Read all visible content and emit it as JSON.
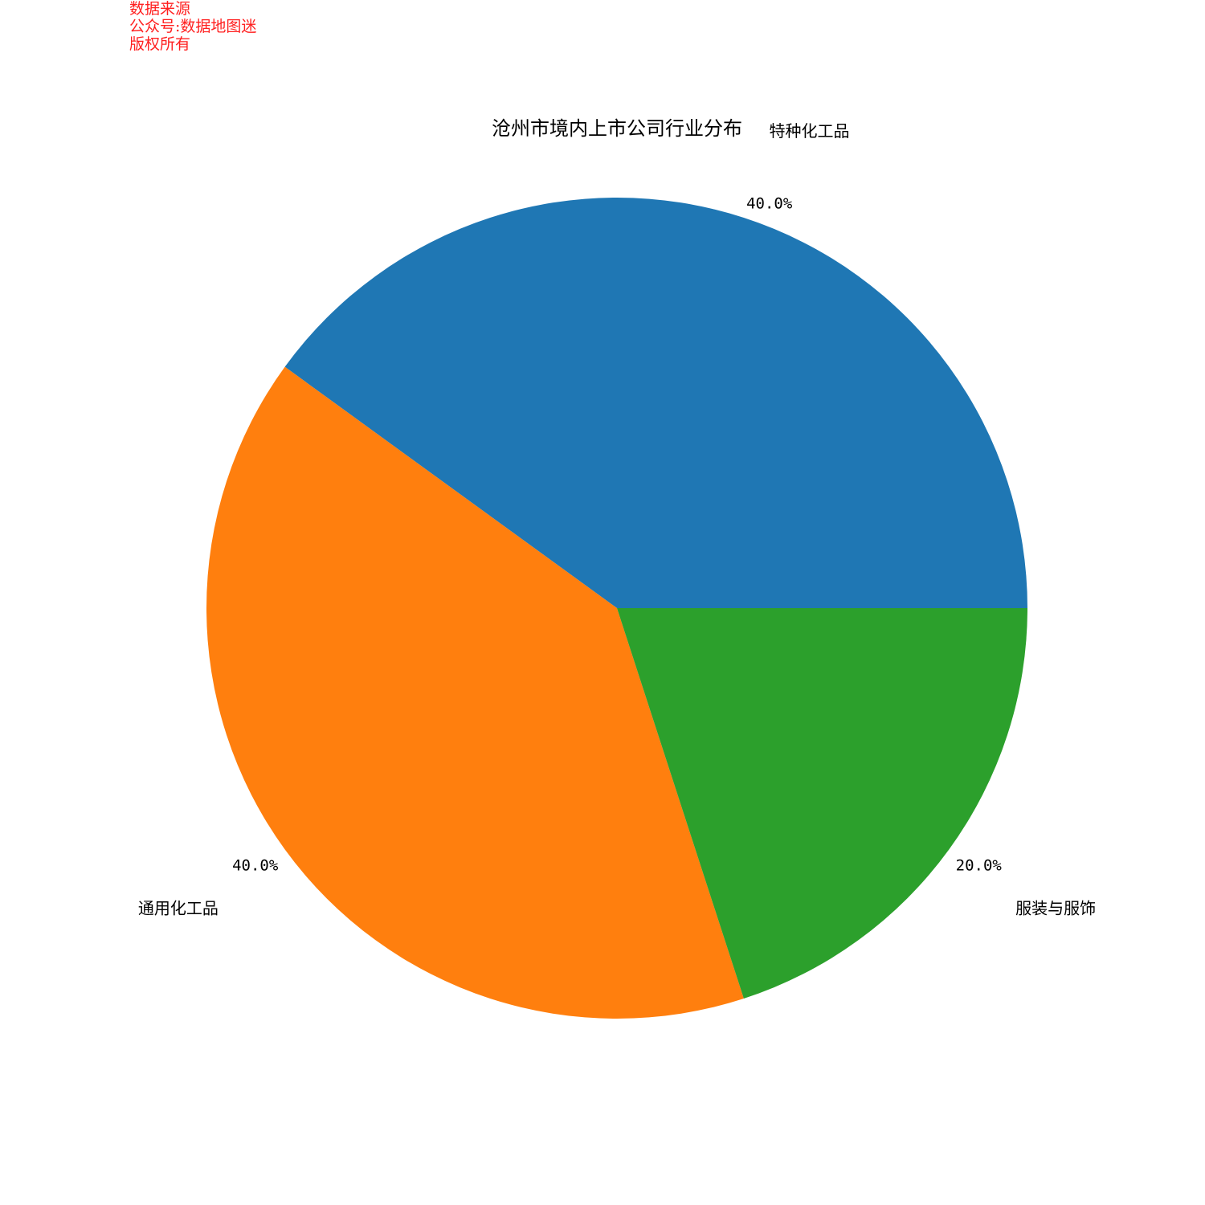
{
  "watermark": {
    "lines": [
      "数据来源",
      "公众号:数据地图迷",
      "版权所有"
    ],
    "color": "#ff2020"
  },
  "chart_data": {
    "type": "pie",
    "title": "沧州市境内上市公司行业分布",
    "slices": [
      {
        "label": "特种化工品",
        "value": 40.0,
        "pct_label": "40.0%",
        "color": "#1f77b4"
      },
      {
        "label": "通用化工品",
        "value": 40.0,
        "pct_label": "40.0%",
        "color": "#ff7f0e"
      },
      {
        "label": "服装与服饰",
        "value": 20.0,
        "pct_label": "20.0%",
        "color": "#2ca02c"
      }
    ],
    "start_angle_deg": 0,
    "direction": "counterclockwise",
    "legend": "none"
  }
}
